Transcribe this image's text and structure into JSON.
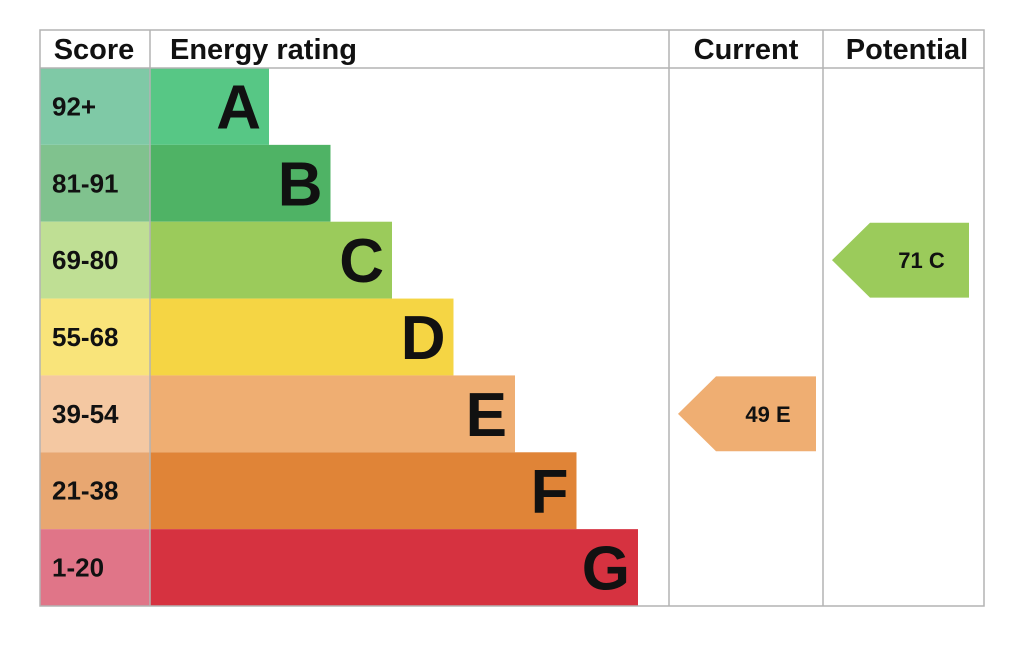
{
  "header": {
    "score": "Score",
    "energy_rating": "Energy rating",
    "current": "Current",
    "potential": "Potential"
  },
  "chart_data": {
    "type": "bar",
    "bands": [
      {
        "letter": "A",
        "score": "92+",
        "color": "#57c785",
        "score_bg": "#7fc9a6"
      },
      {
        "letter": "B",
        "score": "81-91",
        "color": "#4fb365",
        "score_bg": "#80c28e"
      },
      {
        "letter": "C",
        "score": "69-80",
        "color": "#9bcb5b",
        "score_bg": "#bfdf94"
      },
      {
        "letter": "D",
        "score": "55-68",
        "color": "#f5d544",
        "score_bg": "#f9e47a"
      },
      {
        "letter": "E",
        "score": "39-54",
        "color": "#efae72",
        "score_bg": "#f4c8a2"
      },
      {
        "letter": "F",
        "score": "21-38",
        "color": "#e08437",
        "score_bg": "#e8a771"
      },
      {
        "letter": "G",
        "score": "1-20",
        "color": "#d63240",
        "score_bg": "#e07588"
      }
    ],
    "current": {
      "value": 49,
      "band": "E",
      "label": "49  E",
      "color": "#efae72"
    },
    "potential": {
      "value": 71,
      "band": "C",
      "label": "71  C",
      "color": "#9bcb5b"
    }
  }
}
